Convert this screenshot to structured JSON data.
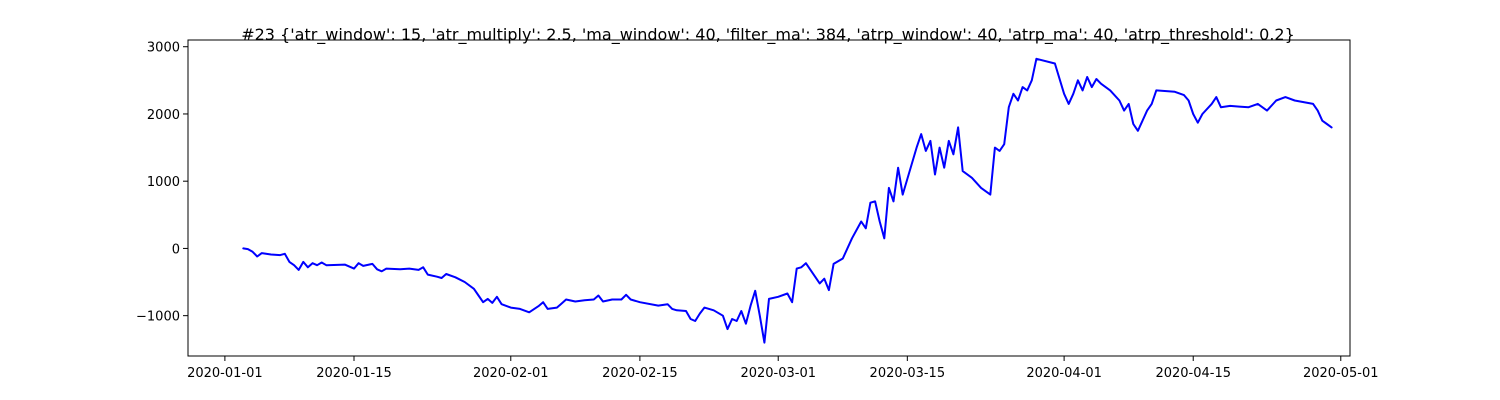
{
  "chart_data": {
    "type": "line",
    "title": "#23 {'atr_window': 15, 'atr_multiply': 2.5, 'ma_window': 40, 'filter_ma': 384, 'atrp_window': 40, 'atrp_ma': 40, 'atrp_threshold': 0.2}",
    "xlabel": "",
    "ylabel": "",
    "x_axis_type": "date",
    "xlim": [
      "2019-12-28",
      "2020-05-02"
    ],
    "ylim": [
      -1600,
      3100
    ],
    "x_ticks": [
      "2020-01-01",
      "2020-01-15",
      "2020-02-01",
      "2020-02-15",
      "2020-03-01",
      "2020-03-15",
      "2020-04-01",
      "2020-04-15",
      "2020-05-01"
    ],
    "y_ticks": [
      -1000,
      0,
      1000,
      2000,
      3000
    ],
    "grid": false,
    "legend": "none",
    "color": "#0000ff",
    "series": [
      {
        "points": [
          [
            "2020-01-03",
            0
          ],
          [
            "2020-01-03 12:00",
            -10
          ],
          [
            "2020-01-04",
            -50
          ],
          [
            "2020-01-04 12:00",
            -120
          ],
          [
            "2020-01-05",
            -70
          ],
          [
            "2020-01-06",
            -90
          ],
          [
            "2020-01-07",
            -100
          ],
          [
            "2020-01-07 12:00",
            -80
          ],
          [
            "2020-01-08",
            -200
          ],
          [
            "2020-01-08 12:00",
            -250
          ],
          [
            "2020-01-09",
            -320
          ],
          [
            "2020-01-09 12:00",
            -200
          ],
          [
            "2020-01-10",
            -280
          ],
          [
            "2020-01-10 12:00",
            -220
          ],
          [
            "2020-01-11",
            -250
          ],
          [
            "2020-01-11 12:00",
            -210
          ],
          [
            "2020-01-12",
            -250
          ],
          [
            "2020-01-14",
            -240
          ],
          [
            "2020-01-15",
            -300
          ],
          [
            "2020-01-15 12:00",
            -220
          ],
          [
            "2020-01-16",
            -260
          ],
          [
            "2020-01-17",
            -230
          ],
          [
            "2020-01-17 12:00",
            -310
          ],
          [
            "2020-01-18",
            -340
          ],
          [
            "2020-01-18 12:00",
            -300
          ],
          [
            "2020-01-20",
            -310
          ],
          [
            "2020-01-21",
            -300
          ],
          [
            "2020-01-22",
            -320
          ],
          [
            "2020-01-22 12:00",
            -280
          ],
          [
            "2020-01-23",
            -390
          ],
          [
            "2020-01-24",
            -420
          ],
          [
            "2020-01-24 12:00",
            -440
          ],
          [
            "2020-01-25",
            -380
          ],
          [
            "2020-01-26",
            -430
          ],
          [
            "2020-01-27",
            -500
          ],
          [
            "2020-01-28",
            -600
          ],
          [
            "2020-01-28 12:00",
            -700
          ],
          [
            "2020-01-29",
            -800
          ],
          [
            "2020-01-29 12:00",
            -750
          ],
          [
            "2020-01-30",
            -810
          ],
          [
            "2020-01-30 12:00",
            -720
          ],
          [
            "2020-01-31",
            -830
          ],
          [
            "2020-02-01",
            -880
          ],
          [
            "2020-02-02",
            -900
          ],
          [
            "2020-02-03",
            -950
          ],
          [
            "2020-02-04",
            -860
          ],
          [
            "2020-02-04 12:00",
            -800
          ],
          [
            "2020-02-05",
            -900
          ],
          [
            "2020-02-06",
            -880
          ],
          [
            "2020-02-06 12:00",
            -820
          ],
          [
            "2020-02-07",
            -760
          ],
          [
            "2020-02-08",
            -790
          ],
          [
            "2020-02-09",
            -770
          ],
          [
            "2020-02-10",
            -760
          ],
          [
            "2020-02-10 12:00",
            -700
          ],
          [
            "2020-02-11",
            -790
          ],
          [
            "2020-02-12",
            -760
          ],
          [
            "2020-02-13",
            -760
          ],
          [
            "2020-02-13 12:00",
            -690
          ],
          [
            "2020-02-14",
            -760
          ],
          [
            "2020-02-15",
            -800
          ],
          [
            "2020-02-17",
            -850
          ],
          [
            "2020-02-18",
            -830
          ],
          [
            "2020-02-18 12:00",
            -900
          ],
          [
            "2020-02-19",
            -920
          ],
          [
            "2020-02-20",
            -930
          ],
          [
            "2020-02-20 12:00",
            -1050
          ],
          [
            "2020-02-21",
            -1080
          ],
          [
            "2020-02-21 12:00",
            -970
          ],
          [
            "2020-02-22",
            -880
          ],
          [
            "2020-02-23",
            -920
          ],
          [
            "2020-02-24",
            -1000
          ],
          [
            "2020-02-24 12:00",
            -1200
          ],
          [
            "2020-02-25",
            -1050
          ],
          [
            "2020-02-25 12:00",
            -1080
          ],
          [
            "2020-02-26",
            -930
          ],
          [
            "2020-02-26 12:00",
            -1120
          ],
          [
            "2020-02-27",
            -850
          ],
          [
            "2020-02-27 12:00",
            -630
          ],
          [
            "2020-02-28",
            -1000
          ],
          [
            "2020-02-28 12:00",
            -1400
          ],
          [
            "2020-02-29",
            -750
          ],
          [
            "2020-03-01",
            -720
          ],
          [
            "2020-03-02",
            -670
          ],
          [
            "2020-03-02 12:00",
            -800
          ],
          [
            "2020-03-03",
            -300
          ],
          [
            "2020-03-03 12:00",
            -280
          ],
          [
            "2020-03-04",
            -220
          ],
          [
            "2020-03-04 12:00",
            -320
          ],
          [
            "2020-03-05",
            -420
          ],
          [
            "2020-03-05 12:00",
            -520
          ],
          [
            "2020-03-06",
            -450
          ],
          [
            "2020-03-06 12:00",
            -620
          ],
          [
            "2020-03-07",
            -230
          ],
          [
            "2020-03-08",
            -150
          ],
          [
            "2020-03-09",
            150
          ],
          [
            "2020-03-10",
            400
          ],
          [
            "2020-03-10 12:00",
            300
          ],
          [
            "2020-03-11",
            680
          ],
          [
            "2020-03-11 12:00",
            700
          ],
          [
            "2020-03-12",
            400
          ],
          [
            "2020-03-12 12:00",
            150
          ],
          [
            "2020-03-13",
            900
          ],
          [
            "2020-03-13 12:00",
            700
          ],
          [
            "2020-03-14",
            1200
          ],
          [
            "2020-03-14 12:00",
            800
          ],
          [
            "2020-03-16",
            1500
          ],
          [
            "2020-03-16 12:00",
            1700
          ],
          [
            "2020-03-17",
            1450
          ],
          [
            "2020-03-17 12:00",
            1600
          ],
          [
            "2020-03-18",
            1100
          ],
          [
            "2020-03-18 12:00",
            1500
          ],
          [
            "2020-03-19",
            1200
          ],
          [
            "2020-03-19 12:00",
            1600
          ],
          [
            "2020-03-20",
            1400
          ],
          [
            "2020-03-20 12:00",
            1800
          ],
          [
            "2020-03-21",
            1150
          ],
          [
            "2020-03-22",
            1050
          ],
          [
            "2020-03-23",
            900
          ],
          [
            "2020-03-24",
            800
          ],
          [
            "2020-03-24 12:00",
            1500
          ],
          [
            "2020-03-25",
            1450
          ],
          [
            "2020-03-25 12:00",
            1550
          ],
          [
            "2020-03-26",
            2100
          ],
          [
            "2020-03-26 12:00",
            2300
          ],
          [
            "2020-03-27",
            2200
          ],
          [
            "2020-03-27 12:00",
            2400
          ],
          [
            "2020-03-28",
            2350
          ],
          [
            "2020-03-28 12:00",
            2500
          ],
          [
            "2020-03-29",
            2820
          ],
          [
            "2020-03-31",
            2750
          ],
          [
            "2020-04-01",
            2300
          ],
          [
            "2020-04-01 12:00",
            2150
          ],
          [
            "2020-04-02",
            2300
          ],
          [
            "2020-04-02 12:00",
            2500
          ],
          [
            "2020-04-03",
            2350
          ],
          [
            "2020-04-03 12:00",
            2550
          ],
          [
            "2020-04-04",
            2400
          ],
          [
            "2020-04-04 12:00",
            2520
          ],
          [
            "2020-04-05",
            2450
          ],
          [
            "2020-04-06",
            2350
          ],
          [
            "2020-04-07",
            2200
          ],
          [
            "2020-04-07 12:00",
            2050
          ],
          [
            "2020-04-08",
            2150
          ],
          [
            "2020-04-08 12:00",
            1850
          ],
          [
            "2020-04-09",
            1750
          ],
          [
            "2020-04-10",
            2050
          ],
          [
            "2020-04-10 12:00",
            2150
          ],
          [
            "2020-04-11",
            2350
          ],
          [
            "2020-04-13",
            2330
          ],
          [
            "2020-04-14",
            2280
          ],
          [
            "2020-04-14 12:00",
            2200
          ],
          [
            "2020-04-15",
            2000
          ],
          [
            "2020-04-15 12:00",
            1870
          ],
          [
            "2020-04-16",
            2000
          ],
          [
            "2020-04-17",
            2150
          ],
          [
            "2020-04-17 12:00",
            2250
          ],
          [
            "2020-04-18",
            2100
          ],
          [
            "2020-04-19",
            2120
          ],
          [
            "2020-04-20",
            2110
          ],
          [
            "2020-04-21",
            2100
          ],
          [
            "2020-04-22",
            2150
          ],
          [
            "2020-04-23",
            2050
          ],
          [
            "2020-04-24",
            2200
          ],
          [
            "2020-04-25",
            2250
          ],
          [
            "2020-04-26",
            2200
          ],
          [
            "2020-04-28",
            2150
          ],
          [
            "2020-04-28 12:00",
            2050
          ],
          [
            "2020-04-29",
            1900
          ],
          [
            "2020-04-29 12:00",
            1850
          ],
          [
            "2020-04-30",
            1800
          ]
        ]
      }
    ]
  }
}
